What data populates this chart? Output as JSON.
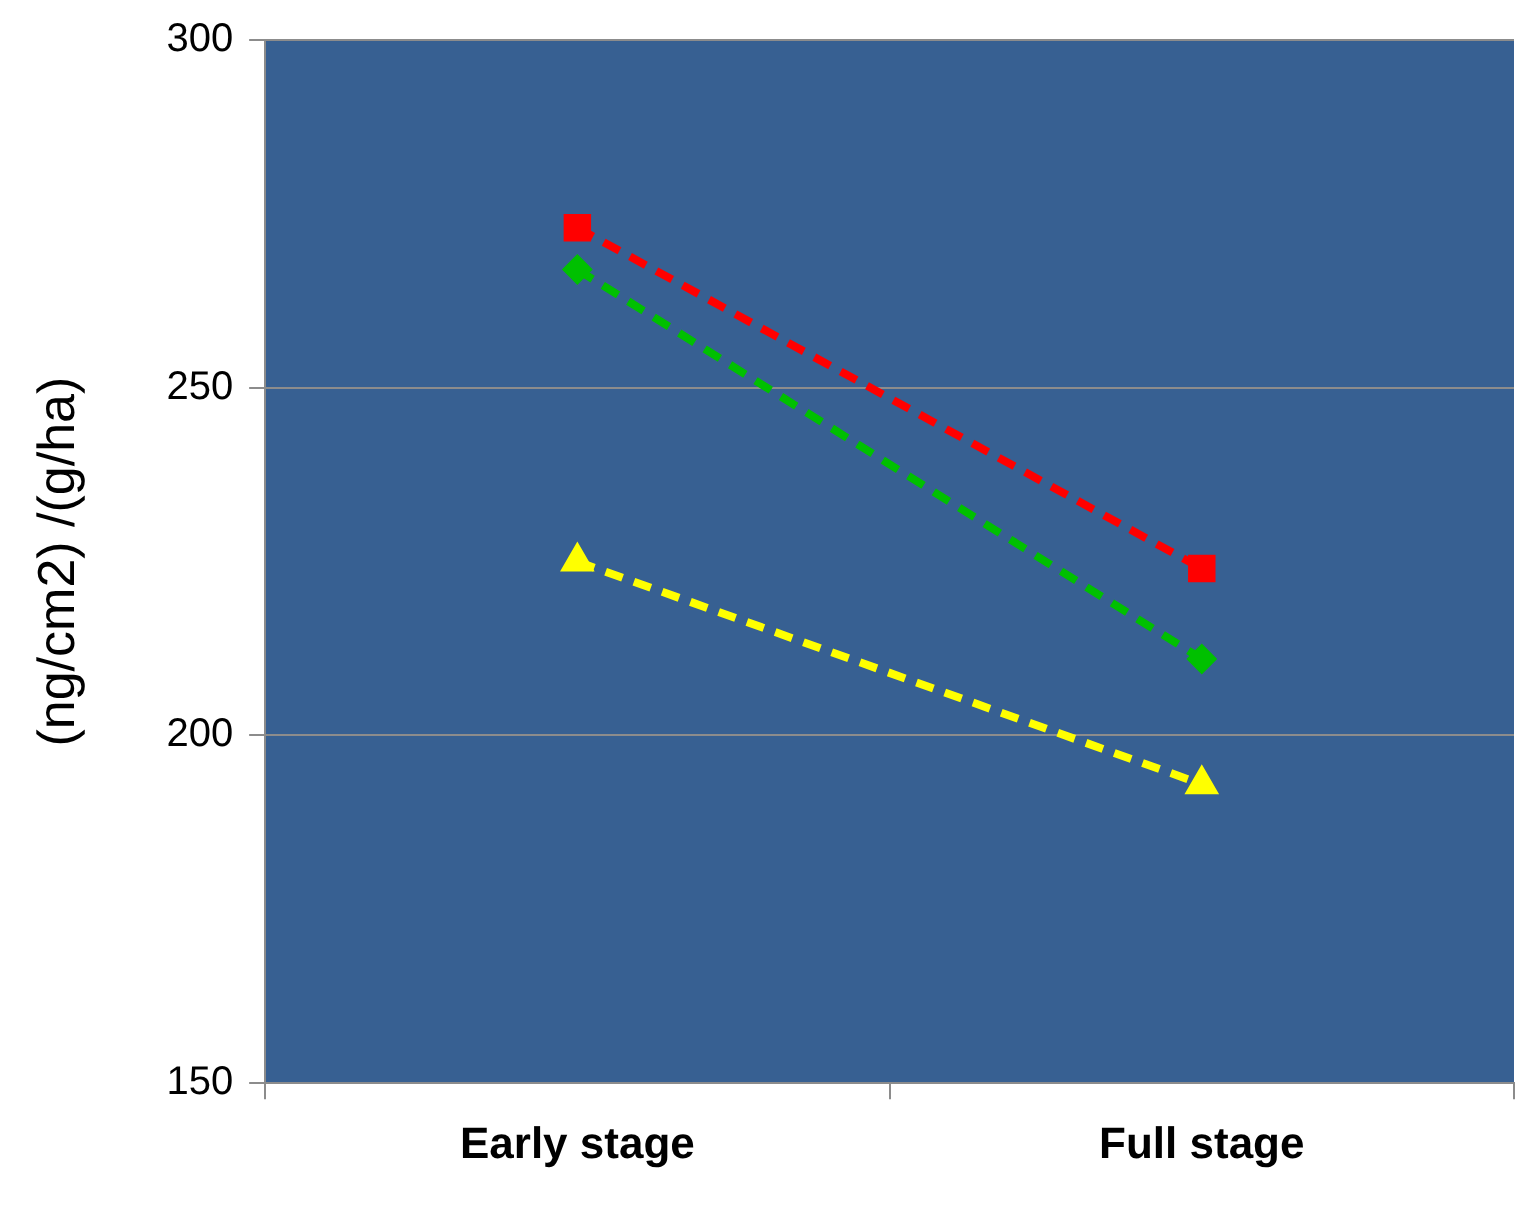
{
  "chart_data": {
    "type": "line",
    "ylabel": "(ng/cm2) /(g/ha)",
    "categories": [
      "Early stage",
      "Full stage"
    ],
    "series": [
      {
        "color": "#ff0000",
        "marker": "square",
        "values": [
          273,
          224
        ]
      },
      {
        "color": "#00c000",
        "marker": "diamond",
        "values": [
          267,
          211
        ]
      },
      {
        "color": "#ffff00",
        "marker": "triangle",
        "values": [
          225,
          193
        ]
      }
    ],
    "ylim": [
      150,
      300
    ],
    "yticks": [
      150,
      200,
      250,
      300
    ],
    "grid": "y",
    "legend": false,
    "line_style": "dashed"
  }
}
